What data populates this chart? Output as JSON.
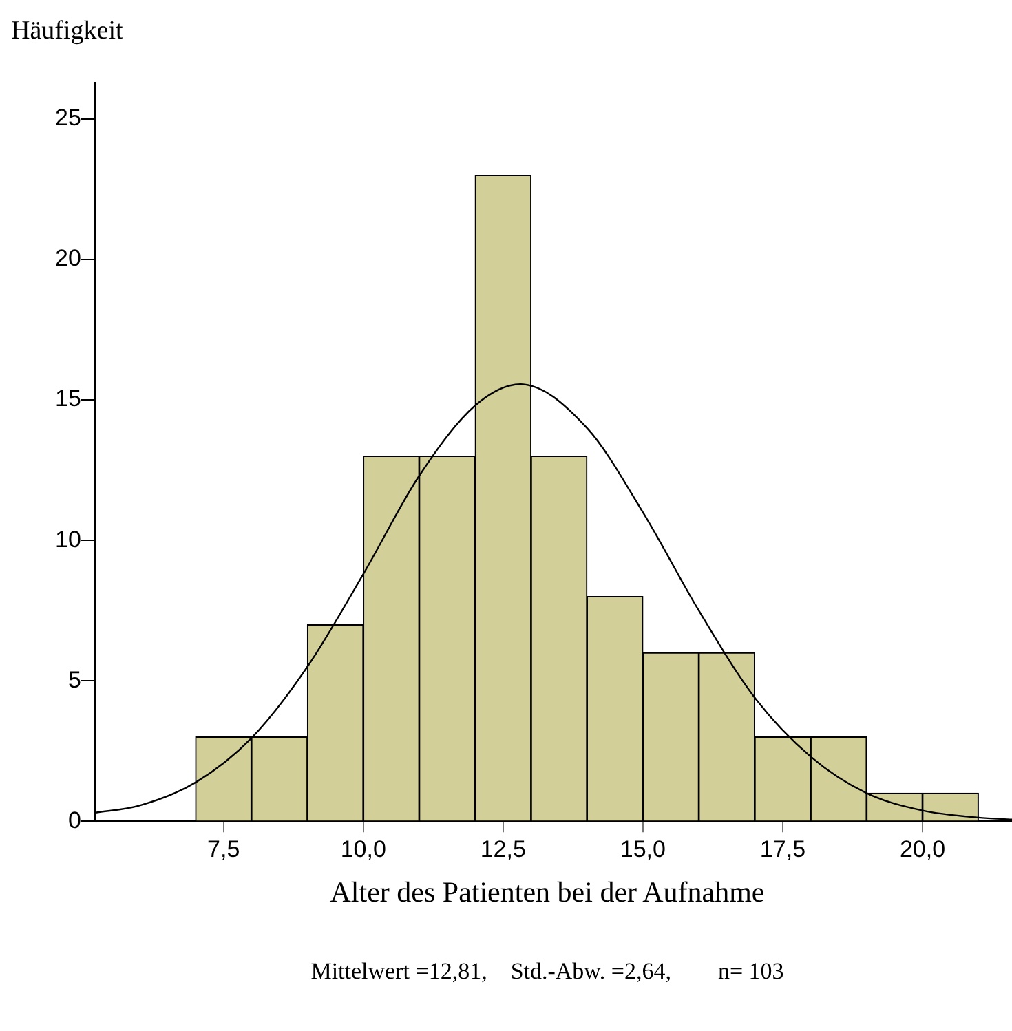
{
  "chart_data": {
    "type": "histogram",
    "ylabel": "Häufigkeit",
    "xlabel": "Alter des Patienten bei der Aufnahme",
    "annotations": [
      "Mittelwert =12,81,    Std.-Abw. =2,64,        n= 103"
    ],
    "bins": [
      7,
      8,
      9,
      10,
      11,
      12,
      13,
      14,
      15,
      16,
      17,
      18,
      19,
      20,
      21
    ],
    "values": [
      3,
      3,
      7,
      13,
      13,
      23,
      13,
      8,
      6,
      6,
      3,
      3,
      1,
      1
    ],
    "color": "#d3cf98",
    "series": [
      {
        "type": "line",
        "color": "#000000",
        "x": [
          5.2,
          6,
          7,
          8,
          9,
          10,
          11,
          12,
          12.81,
          14,
          15,
          16,
          17,
          18,
          19,
          20,
          21,
          21.6
        ],
        "values": [
          0.3,
          0.56,
          1.38,
          2.96,
          5.5,
          8.8,
          12.3,
          14.8,
          15.56,
          14.0,
          11.0,
          7.5,
          4.4,
          2.3,
          1.0,
          0.38,
          0.13,
          0.06
        ]
      }
    ],
    "xlim": [
      5.2,
      21.6
    ],
    "xticks": [
      {
        "value": 7.5,
        "label": "7,5"
      },
      {
        "value": 10,
        "label": "10,0"
      },
      {
        "value": 12.5,
        "label": "12,5"
      },
      {
        "value": 15,
        "label": "15,0"
      },
      {
        "value": 17.5,
        "label": "17,5"
      },
      {
        "value": 20,
        "label": "20,0"
      }
    ],
    "ylim": [
      0,
      26.3
    ],
    "yticks": [
      0,
      5,
      10,
      15,
      20,
      25
    ],
    "grid": false,
    "legend": false,
    "marker": "none",
    "line_style": "solid"
  }
}
